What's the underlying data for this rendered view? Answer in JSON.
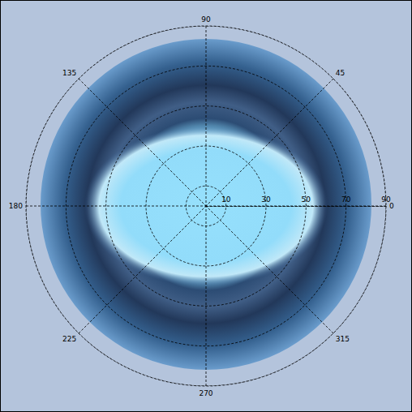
{
  "chart_data": {
    "type": "polar",
    "angle_lim": [
      0,
      360
    ],
    "angle_ticks": [
      0,
      45,
      90,
      135,
      180,
      225,
      270,
      315
    ],
    "radius_lim": [
      0,
      90
    ],
    "radius_ticks": [
      10,
      30,
      50,
      70,
      90
    ],
    "grid": true
  }
}
